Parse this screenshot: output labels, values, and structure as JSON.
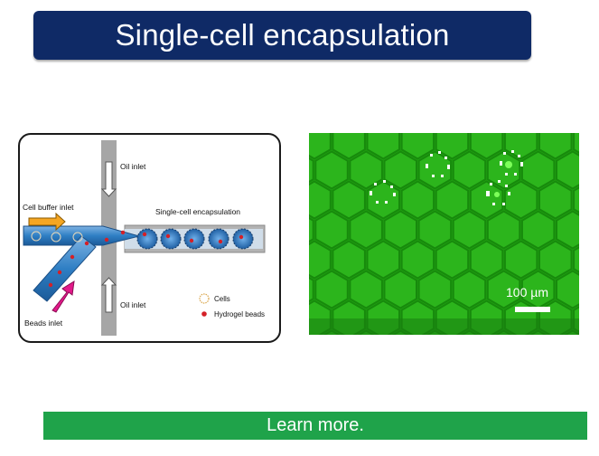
{
  "header": {
    "title": "Single-cell encapsulation"
  },
  "diagram": {
    "labels": {
      "oil_inlet_top": "Oil inlet",
      "oil_inlet_bottom": "Oil inlet",
      "cell_buffer_inlet": "Cell buffer inlet",
      "beads_inlet": "Beads inlet",
      "output": "Single-cell encapsulation"
    },
    "legend": {
      "cells": "Cells",
      "beads": "Hydrogel beads"
    }
  },
  "micrograph": {
    "scale_label": "100 µm"
  },
  "footer": {
    "cta_label": "Learn more."
  },
  "colors": {
    "title_bg": "#0f2a66",
    "cta_bg": "#1fa34a",
    "channel_blue": "#2f7fc4",
    "inlet_arrow_orange": "#f5a623",
    "inlet_arrow_magenta": "#e2198a",
    "bead_red": "#d42027",
    "micrograph_green": "#22a314"
  }
}
